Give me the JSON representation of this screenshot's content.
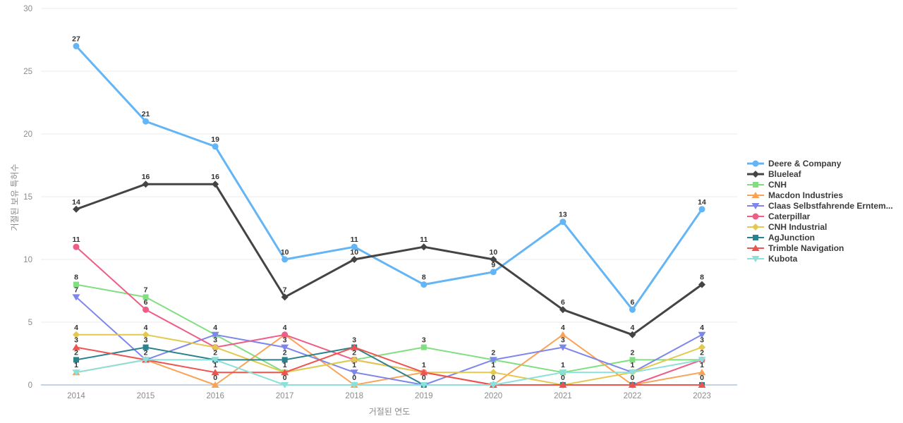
{
  "chart_data": {
    "type": "line",
    "x": [
      2014,
      2015,
      2016,
      2017,
      2018,
      2019,
      2020,
      2021,
      2022,
      2023
    ],
    "xlabel": "거절된 연도",
    "ylabel": "거절된 보유 특허수",
    "ylim": [
      0,
      30
    ],
    "yticks": [
      0,
      5,
      10,
      15,
      20,
      25,
      30
    ],
    "grid": true,
    "legend_position": "right",
    "series": [
      {
        "name": "Deere & Company",
        "color": "#64b5f6",
        "marker": "circle",
        "line_width": 3,
        "values": [
          27,
          21,
          19,
          10,
          11,
          8,
          9,
          13,
          6,
          14
        ]
      },
      {
        "name": "Blueleaf",
        "color": "#444444",
        "marker": "diamond",
        "line_width": 3,
        "values": [
          14,
          16,
          16,
          7,
          10,
          11,
          10,
          6,
          4,
          8
        ]
      },
      {
        "name": "CNH",
        "color": "#81de81",
        "marker": "square",
        "line_width": 2,
        "values": [
          8,
          7,
          4,
          1,
          2,
          3,
          2,
          1,
          2,
          2
        ]
      },
      {
        "name": "Macdon Industries",
        "color": "#faa356",
        "marker": "triangle-up",
        "line_width": 2,
        "values": [
          1,
          2,
          0,
          4,
          0,
          1,
          0,
          4,
          0,
          1
        ]
      },
      {
        "name": "Claas Selbstfahrende Erntem...",
        "color": "#7e86ec",
        "marker": "triangle-down",
        "line_width": 2,
        "values": [
          7,
          2,
          4,
          3,
          1,
          0,
          2,
          3,
          1,
          4
        ]
      },
      {
        "name": "Caterpillar",
        "color": "#ef5d87",
        "marker": "circle",
        "line_width": 2,
        "values": [
          11,
          6,
          3,
          4,
          2,
          1,
          0,
          0,
          0,
          2
        ]
      },
      {
        "name": "CNH Industrial",
        "color": "#e3c94f",
        "marker": "diamond",
        "line_width": 2,
        "values": [
          4,
          4,
          3,
          1,
          2,
          1,
          1,
          0,
          1,
          3
        ]
      },
      {
        "name": "AgJunction",
        "color": "#2a828c",
        "marker": "square",
        "line_width": 2,
        "values": [
          2,
          3,
          2,
          2,
          3,
          0,
          0,
          0,
          0,
          0
        ]
      },
      {
        "name": "Trimble Navigation",
        "color": "#ef5350",
        "marker": "triangle-up",
        "line_width": 2,
        "values": [
          3,
          2,
          1,
          1,
          3,
          1,
          0,
          0,
          0,
          0
        ]
      },
      {
        "name": "Kubota",
        "color": "#8be0da",
        "marker": "triangle-down",
        "line_width": 2,
        "values": [
          1,
          2,
          2,
          0,
          0,
          0,
          0,
          1,
          1,
          2
        ]
      }
    ],
    "colors": {
      "grid": "#ebebeb",
      "axis_line": "#b0c4de",
      "tick_text": "#8b8b8b",
      "value_label": "#333333"
    }
  }
}
